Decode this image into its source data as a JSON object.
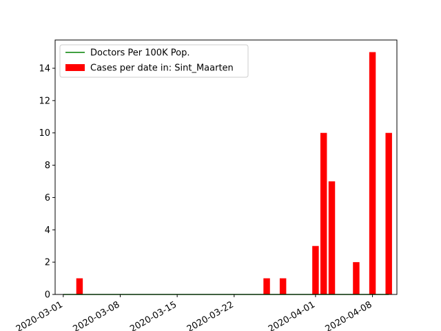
{
  "chart_data": {
    "type": "bar",
    "title": "",
    "xlabel": "",
    "ylabel": "",
    "x_type": "date",
    "xlim": [
      "2020-02-29",
      "2020-04-11"
    ],
    "ylim": [
      0,
      15.75
    ],
    "yticks": [
      0,
      2,
      4,
      6,
      8,
      10,
      12,
      14
    ],
    "xticks": [
      "2020-03-01",
      "2020-03-08",
      "2020-03-15",
      "2020-03-22",
      "2020-04-01",
      "2020-04-08"
    ],
    "grid": false,
    "legend_position": "top-left",
    "series": [
      {
        "name": "Doctors Per 100K Pop.",
        "type": "line",
        "color": "#008000",
        "x": [
          "2020-03-01",
          "2020-04-10"
        ],
        "y": [
          0,
          0
        ]
      },
      {
        "name": "Cases per date in: Sint_Maarten",
        "type": "bar",
        "color": "#ff0000",
        "x": [
          "2020-03-03",
          "2020-03-26",
          "2020-03-28",
          "2020-04-01",
          "2020-04-02",
          "2020-04-03",
          "2020-04-06",
          "2020-04-08",
          "2020-04-10"
        ],
        "y": [
          1,
          1,
          1,
          3,
          10,
          7,
          2,
          15,
          10
        ]
      }
    ]
  }
}
